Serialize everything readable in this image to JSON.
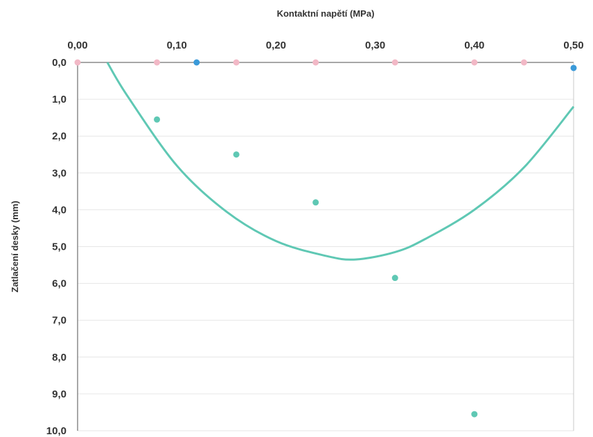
{
  "chart_data": {
    "type": "scatter",
    "xlabel": "Kontaktní napětí  (MPa)",
    "ylabel": "Zatlačení desky (mm)",
    "x_axis_position": "top",
    "y_axis_reversed": true,
    "xlim": [
      0.0,
      0.5
    ],
    "ylim": [
      0.0,
      10.0
    ],
    "x_ticks": [
      "0,00",
      "0,10",
      "0,20",
      "0,30",
      "0,40",
      "0,50"
    ],
    "x_tick_values": [
      0.0,
      0.1,
      0.2,
      0.3,
      0.4,
      0.5
    ],
    "y_ticks": [
      "0,0",
      "1,0",
      "2,0",
      "3,0",
      "4,0",
      "5,0",
      "6,0",
      "7,0",
      "8,0",
      "9,0",
      "10,0"
    ],
    "y_tick_values": [
      0,
      1,
      2,
      3,
      4,
      5,
      6,
      7,
      8,
      9,
      10
    ],
    "grid": "horizontal",
    "series": [
      {
        "kind": "points",
        "color": "#5fc8b4",
        "x": [
          0.08,
          0.16,
          0.24,
          0.32,
          0.4
        ],
        "y": [
          1.55,
          2.5,
          3.8,
          5.85,
          9.55
        ]
      },
      {
        "kind": "points",
        "color": "#f2b8c6",
        "x": [
          0.0,
          0.08,
          0.16,
          0.24,
          0.32,
          0.4,
          0.45
        ],
        "y": [
          0.0,
          0.0,
          0.0,
          0.0,
          0.0,
          0.0,
          0.0
        ]
      },
      {
        "kind": "points",
        "color": "#3a9ad9",
        "x": [
          0.12,
          0.5
        ],
        "y": [
          0.0,
          0.15
        ]
      },
      {
        "kind": "trendline",
        "color": "#5fc8b4",
        "x": [
          0.03,
          0.05,
          0.1,
          0.15,
          0.2,
          0.25,
          0.28,
          0.32,
          0.35,
          0.4,
          0.45,
          0.5
        ],
        "y": [
          0.0,
          0.9,
          2.8,
          4.05,
          4.85,
          5.25,
          5.35,
          5.15,
          4.8,
          4.0,
          2.85,
          1.2
        ]
      }
    ]
  }
}
